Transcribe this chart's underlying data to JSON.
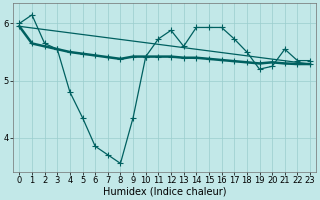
{
  "xlabel": "Humidex (Indice chaleur)",
  "ylabel": "",
  "background_color": "#c2e8e8",
  "grid_color": "#9acece",
  "line_color": "#006060",
  "xlim": [
    -0.5,
    23.5
  ],
  "ylim": [
    3.4,
    6.35
  ],
  "yticks": [
    4,
    5,
    6
  ],
  "xticks": [
    0,
    1,
    2,
    3,
    4,
    5,
    6,
    7,
    8,
    9,
    10,
    11,
    12,
    13,
    14,
    15,
    16,
    17,
    18,
    19,
    20,
    21,
    22,
    23
  ],
  "line1_x": [
    0,
    1,
    2,
    3,
    4,
    5,
    6,
    7,
    8,
    9,
    10,
    11,
    12,
    13,
    14,
    15,
    16,
    17,
    18,
    19,
    20,
    21,
    22,
    23
  ],
  "line1_y": [
    6.0,
    6.15,
    5.65,
    5.55,
    4.8,
    4.35,
    3.85,
    3.7,
    3.55,
    4.35,
    5.42,
    5.73,
    5.88,
    5.6,
    5.93,
    5.93,
    5.93,
    5.73,
    5.5,
    5.2,
    5.25,
    5.55,
    5.35,
    5.35
  ],
  "line2_x": [
    0,
    1,
    2,
    3,
    4,
    5,
    6,
    7,
    8,
    9,
    10,
    11,
    12,
    13,
    14,
    15,
    16,
    17,
    18,
    19,
    20,
    21,
    22,
    23
  ],
  "line2_y": [
    5.95,
    5.65,
    5.6,
    5.55,
    5.5,
    5.47,
    5.44,
    5.41,
    5.38,
    5.42,
    5.42,
    5.42,
    5.42,
    5.4,
    5.4,
    5.38,
    5.36,
    5.34,
    5.32,
    5.3,
    5.32,
    5.3,
    5.29,
    5.29
  ],
  "line3_x": [
    0,
    23
  ],
  "line3_y": [
    5.95,
    5.29
  ],
  "marker": "+",
  "marker_size": 4,
  "linewidth1": 0.9,
  "linewidth2": 1.8,
  "linewidth3": 0.9,
  "font_size_label": 7,
  "font_size_tick": 6
}
